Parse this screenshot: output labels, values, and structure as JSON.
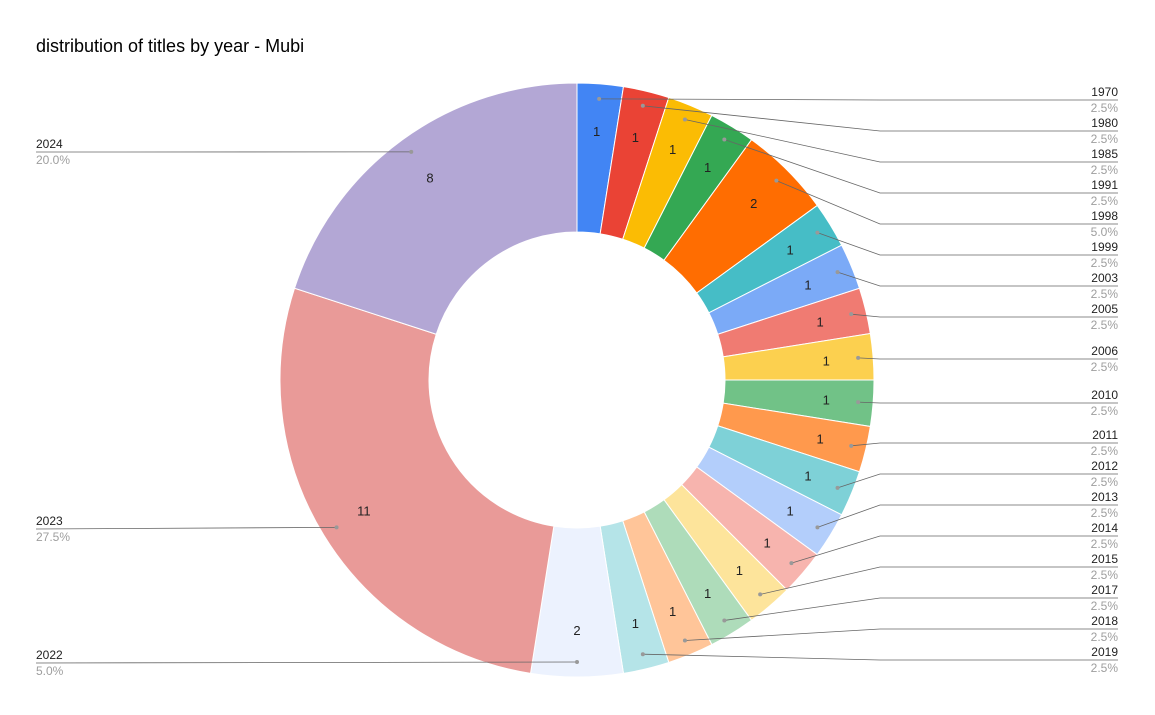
{
  "chart_data": {
    "type": "pie",
    "donut": true,
    "title": "distribution of titles by year - Mubi",
    "categories": [
      "1970",
      "1980",
      "1985",
      "1991",
      "1998",
      "1999",
      "2003",
      "2005",
      "2006",
      "2010",
      "2011",
      "2012",
      "2013",
      "2014",
      "2015",
      "2017",
      "2018",
      "2019",
      "2022",
      "2023",
      "2024"
    ],
    "values": [
      1,
      1,
      1,
      1,
      2,
      1,
      1,
      1,
      1,
      1,
      1,
      1,
      1,
      1,
      1,
      1,
      1,
      1,
      2,
      11,
      8
    ],
    "percent_labels": [
      "2.5%",
      "2.5%",
      "2.5%",
      "2.5%",
      "5.0%",
      "2.5%",
      "2.5%",
      "2.5%",
      "2.5%",
      "2.5%",
      "2.5%",
      "2.5%",
      "2.5%",
      "2.5%",
      "2.5%",
      "2.5%",
      "2.5%",
      "2.5%",
      "5.0%",
      "27.5%",
      "20.0%"
    ],
    "colors": [
      "#4285f4",
      "#ea4335",
      "#fbbc04",
      "#34a853",
      "#ff6d01",
      "#46bdc6",
      "#7baaf7",
      "#f07b72",
      "#fcd04f",
      "#71c287",
      "#ff994d",
      "#7ed1d7",
      "#b3cefb",
      "#f7b4ae",
      "#fde49b",
      "#aedcba",
      "#ffc599",
      "#b5e4e8",
      "#ecf2fe",
      "#e99a98",
      "#b3a7d5"
    ],
    "legend": "none"
  }
}
